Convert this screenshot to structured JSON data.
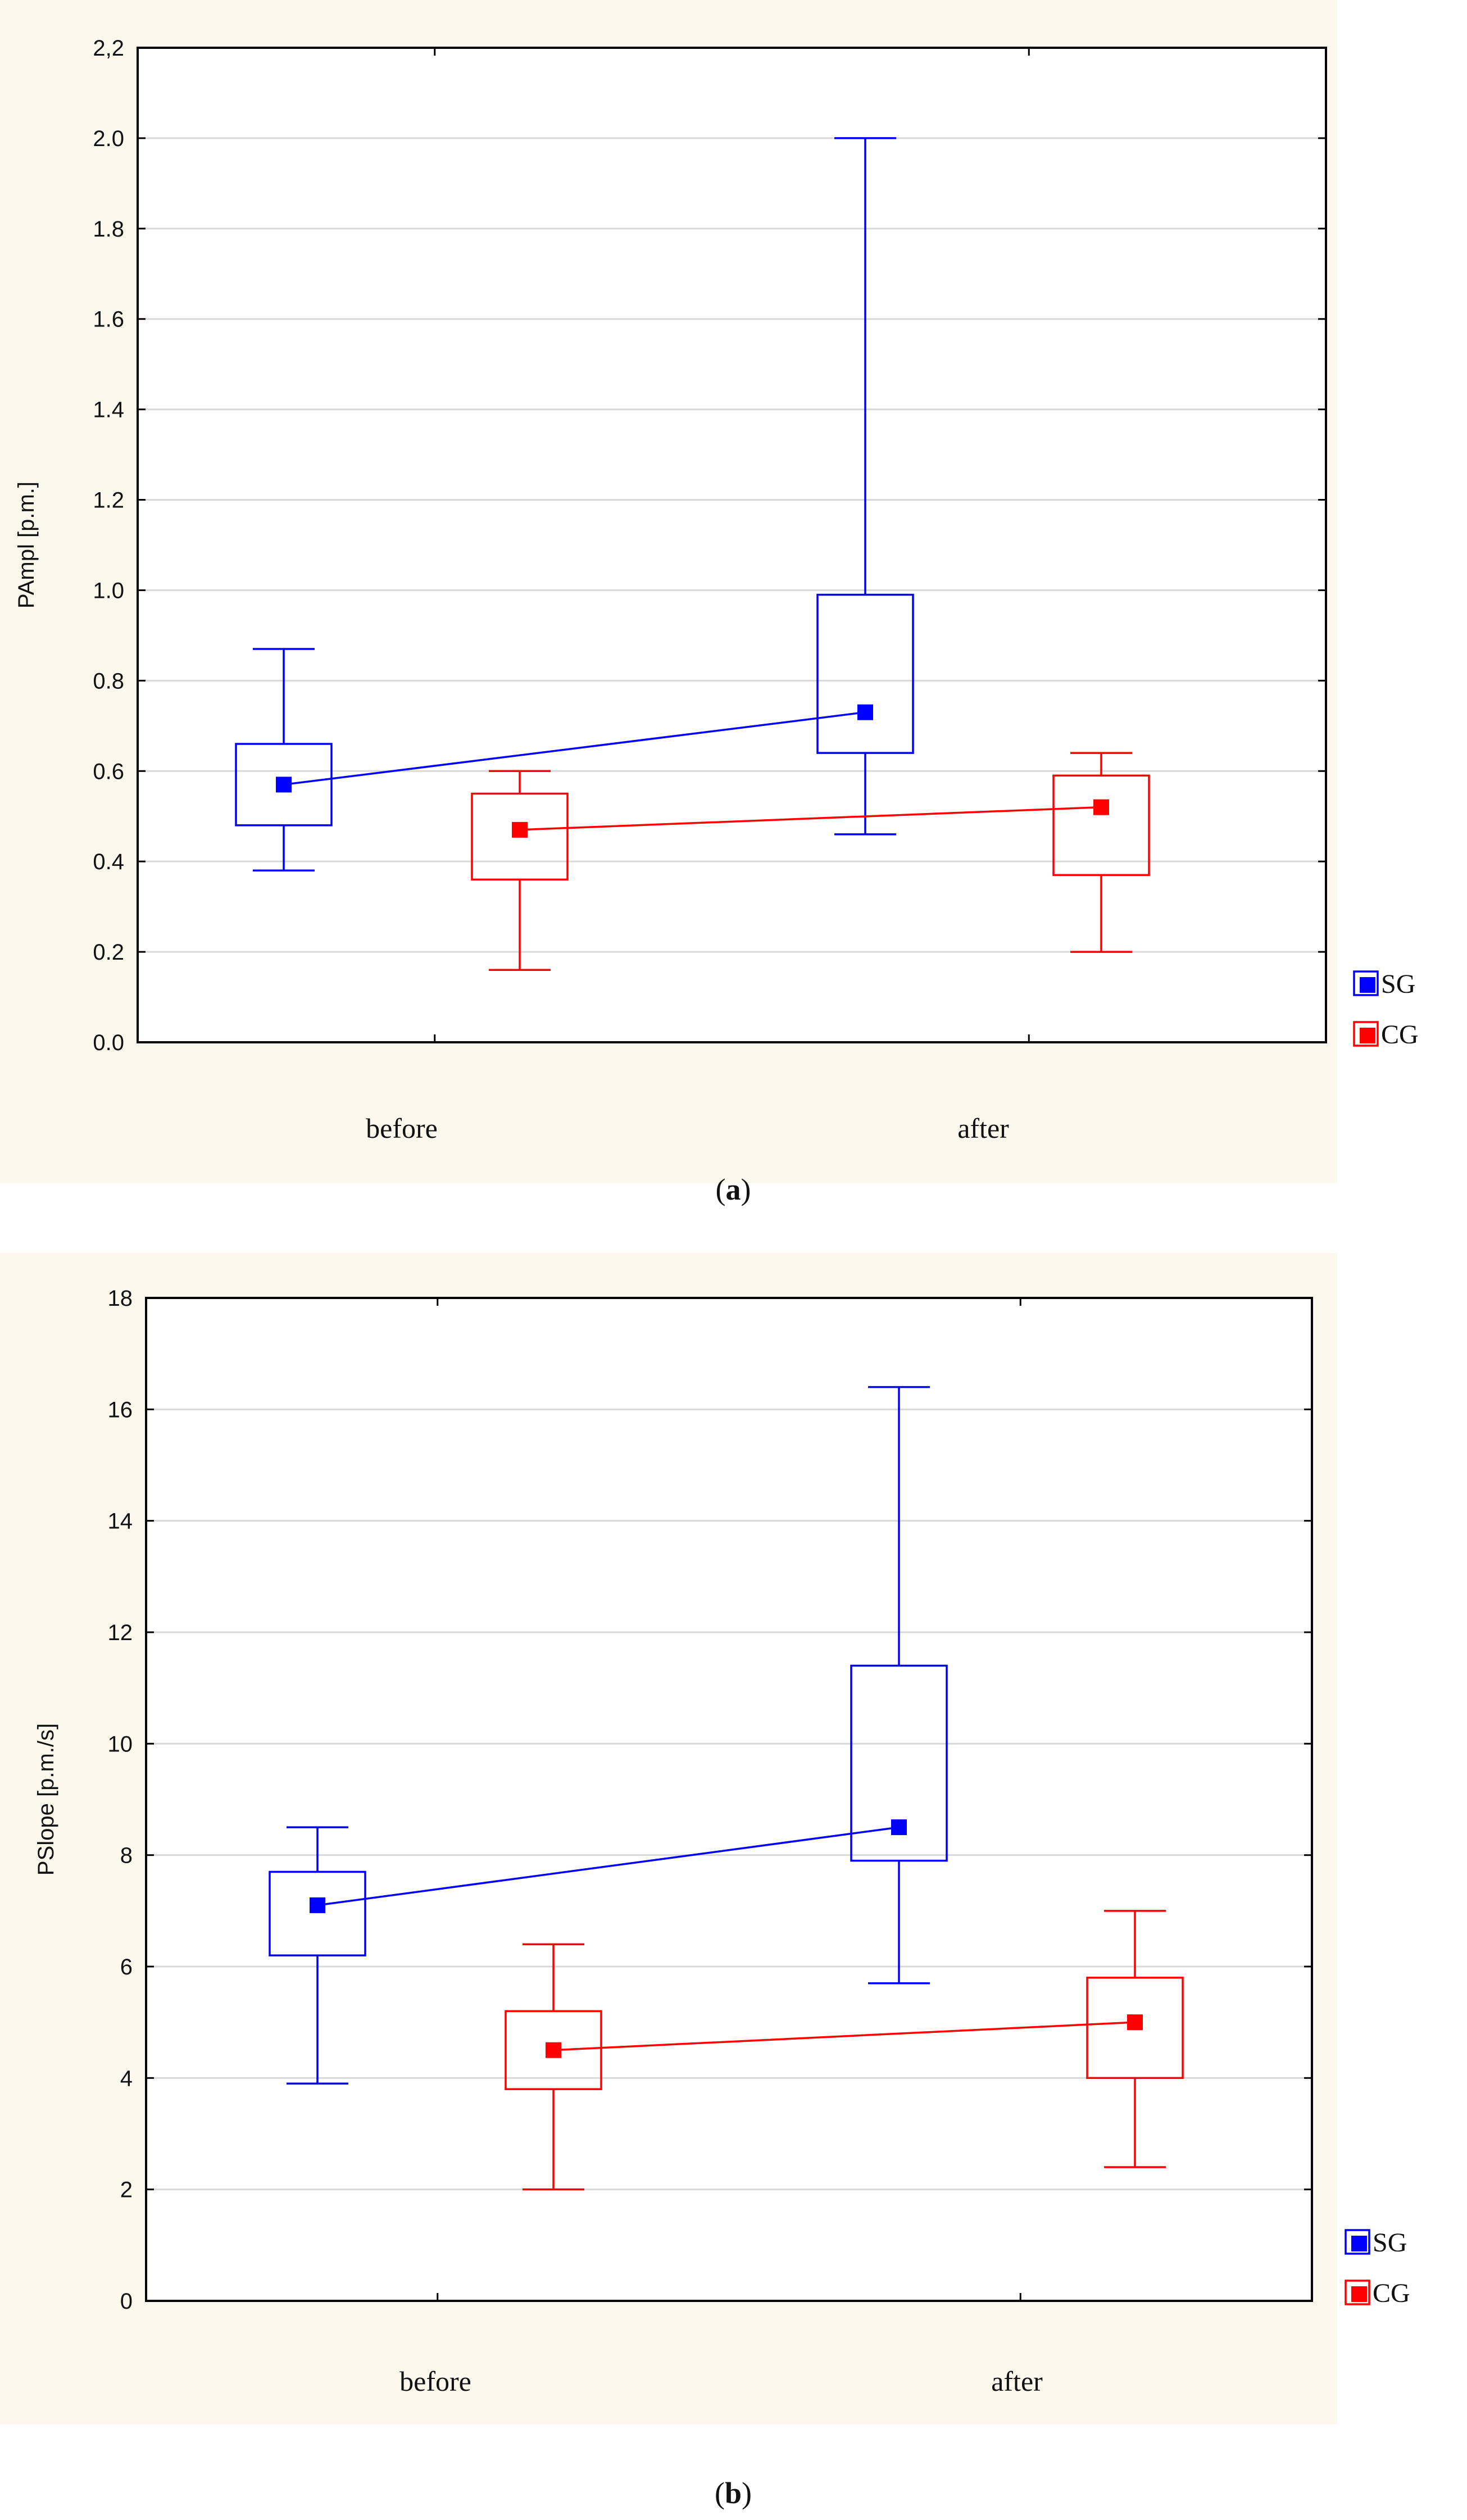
{
  "chart_data": [
    {
      "type": "box",
      "panel_label": "a",
      "ylabel": "PAmpl [p.m.]",
      "xlabel": "",
      "ylim": [
        0.0,
        2.2
      ],
      "yticks": [
        "0.0",
        "0.2",
        "0.4",
        "0.6",
        "0.8",
        "1.0",
        "1.2",
        "1.4",
        "1.6",
        "1.8",
        "2.0",
        "2,2"
      ],
      "categories": [
        "before",
        "after"
      ],
      "series": [
        {
          "name": "SG",
          "color": "#0000ff",
          "boxes": [
            {
              "category": "before",
              "min": 0.38,
              "q1": 0.48,
              "median": 0.57,
              "q3": 0.66,
              "max": 0.87
            },
            {
              "category": "after",
              "min": 0.46,
              "q1": 0.64,
              "median": 0.73,
              "q3": 0.99,
              "max": 2.0
            }
          ]
        },
        {
          "name": "CG",
          "color": "#ff0000",
          "boxes": [
            {
              "category": "before",
              "min": 0.16,
              "q1": 0.36,
              "median": 0.47,
              "q3": 0.55,
              "max": 0.6
            },
            {
              "category": "after",
              "min": 0.2,
              "q1": 0.37,
              "median": 0.52,
              "q3": 0.59,
              "max": 0.64
            }
          ]
        }
      ],
      "legend": [
        "SG",
        "CG"
      ],
      "legend_position": "bottom-right outside",
      "grid": true
    },
    {
      "type": "box",
      "panel_label": "b",
      "ylabel": "PSlope [p.m./s]",
      "xlabel": "",
      "ylim": [
        0,
        18
      ],
      "yticks": [
        "0",
        "2",
        "4",
        "6",
        "8",
        "10",
        "12",
        "14",
        "16",
        "18"
      ],
      "categories": [
        "before",
        "after"
      ],
      "series": [
        {
          "name": "SG",
          "color": "#0000ff",
          "boxes": [
            {
              "category": "before",
              "min": 3.9,
              "q1": 6.2,
              "median": 7.1,
              "q3": 7.7,
              "max": 8.5
            },
            {
              "category": "after",
              "min": 5.7,
              "q1": 7.9,
              "median": 8.5,
              "q3": 11.4,
              "max": 16.4
            }
          ]
        },
        {
          "name": "CG",
          "color": "#ff0000",
          "boxes": [
            {
              "category": "before",
              "min": 2.0,
              "q1": 3.8,
              "median": 4.5,
              "q3": 5.2,
              "max": 6.4
            },
            {
              "category": "after",
              "min": 2.4,
              "q1": 4.0,
              "median": 5.0,
              "q3": 5.8,
              "max": 7.0
            }
          ]
        }
      ],
      "legend": [
        "SG",
        "CG"
      ],
      "legend_position": "bottom-right outside",
      "grid": true
    }
  ],
  "captions": [
    "(a)",
    "(b)"
  ],
  "colors": {
    "background": "#fdf8ee",
    "grid": "#d9d9d9",
    "axis": "#000000"
  }
}
